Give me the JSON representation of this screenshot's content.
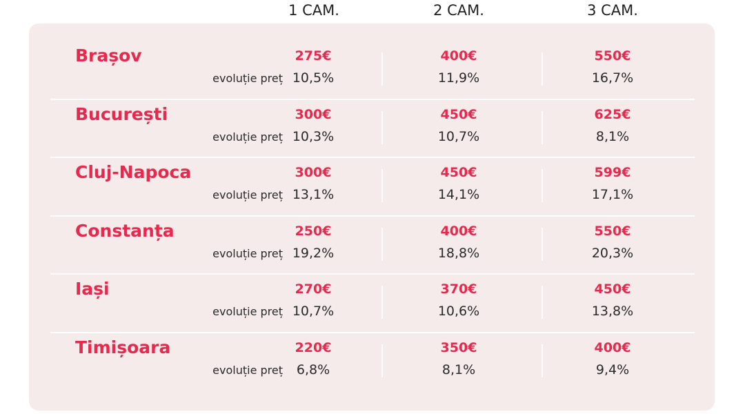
{
  "headers": [
    "1 CAM.",
    "2 CAM.",
    "3 CAM."
  ],
  "evolution_label": "evoluție preț",
  "rows": [
    {
      "city": "Brașov",
      "prices": [
        "275€",
        "400€",
        "550€"
      ],
      "changes": [
        "10,5%",
        "11,9%",
        "16,7%"
      ]
    },
    {
      "city": "București",
      "prices": [
        "300€",
        "450€",
        "625€"
      ],
      "changes": [
        "10,3%",
        "10,7%",
        "8,1%"
      ]
    },
    {
      "city": "Cluj-Napoca",
      "prices": [
        "300€",
        "450€",
        "599€"
      ],
      "changes": [
        "13,1%",
        "14,1%",
        "17,1%"
      ]
    },
    {
      "city": "Constanța",
      "prices": [
        "250€",
        "400€",
        "550€"
      ],
      "changes": [
        "19,2%",
        "18,8%",
        "20,3%"
      ]
    },
    {
      "city": "Iași",
      "prices": [
        "270€",
        "370€",
        "450€"
      ],
      "changes": [
        "10,7%",
        "10,6%",
        "13,8%"
      ]
    },
    {
      "city": "Timișoara",
      "prices": [
        "220€",
        "350€",
        "400€"
      ],
      "changes": [
        "6,8%",
        "8,1%",
        "9,4%"
      ]
    }
  ],
  "colors": {
    "accent": "#e8294d",
    "panel": "#f4ebea",
    "text": "#2a2a2a"
  }
}
